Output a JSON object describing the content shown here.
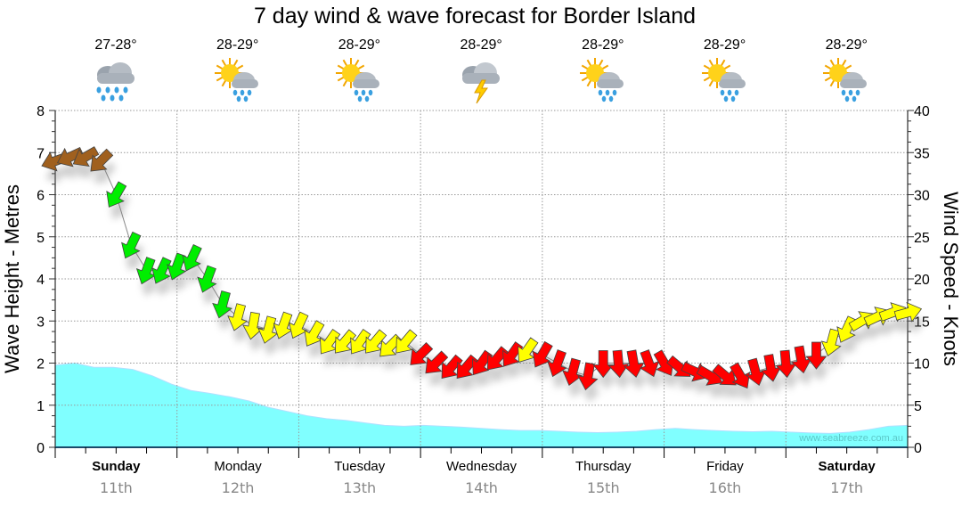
{
  "chart_data": {
    "type": "line",
    "title": "7 day wind & wave forecast for Border Island",
    "ylabel": "Wave Height - Metres",
    "y2label": "Wind Speed - Knots",
    "ylim": [
      0,
      8
    ],
    "y2lim": [
      0,
      40
    ],
    "yticks": [
      "0",
      "1",
      "2",
      "3",
      "4",
      "5",
      "6",
      "7",
      "8"
    ],
    "y2ticks": [
      "0",
      "5",
      "10",
      "15",
      "20",
      "25",
      "30",
      "35",
      "40"
    ],
    "grid": true,
    "days": [
      {
        "day": "Sunday",
        "date": "11th",
        "bold": true,
        "temp": "27-28°",
        "icon": "rain-cloud-icon"
      },
      {
        "day": "Monday",
        "date": "12th",
        "bold": false,
        "temp": "28-29°",
        "icon": "sun-cloud-rain-icon"
      },
      {
        "day": "Tuesday",
        "date": "13th",
        "bold": false,
        "temp": "28-29°",
        "icon": "sun-cloud-rain-icon"
      },
      {
        "day": "Wednesday",
        "date": "14th",
        "bold": false,
        "temp": "28-29°",
        "icon": "storm-cloud-icon"
      },
      {
        "day": "Thursday",
        "date": "15th",
        "bold": false,
        "temp": "28-29°",
        "icon": "sun-cloud-rain-icon"
      },
      {
        "day": "Friday",
        "date": "16th",
        "bold": false,
        "temp": "28-29°",
        "icon": "sun-cloud-rain-icon"
      },
      {
        "day": "Saturday",
        "date": "17th",
        "bold": true,
        "temp": "28-29°",
        "icon": "sun-cloud-rain-icon"
      }
    ],
    "wind_speed_knots": [
      34,
      34.5,
      34.5,
      34,
      30,
      24,
      21,
      21,
      21.5,
      22.5,
      20,
      17,
      15.5,
      14.5,
      14,
      14.5,
      14.5,
      13.5,
      12.5,
      12.5,
      12.5,
      12.5,
      12,
      12.5,
      11,
      10,
      9.5,
      9.5,
      10,
      10.5,
      11,
      11.5,
      11,
      10,
      9,
      8.5,
      10,
      10,
      10,
      10,
      10,
      9.5,
      9,
      8.5,
      8.5,
      8.5,
      9,
      9.5,
      10,
      10.5,
      11,
      12.5,
      14,
      15,
      15.5,
      16,
      16
    ],
    "wind_direction_deg": [
      250,
      245,
      240,
      225,
      210,
      205,
      200,
      205,
      200,
      205,
      200,
      195,
      195,
      190,
      195,
      200,
      205,
      210,
      215,
      220,
      215,
      220,
      225,
      220,
      225,
      225,
      220,
      220,
      215,
      220,
      215,
      215,
      210,
      200,
      195,
      190,
      180,
      175,
      170,
      160,
      150,
      130,
      115,
      120,
      130,
      150,
      165,
      170,
      175,
      170,
      180,
      195,
      205,
      60,
      65,
      70,
      75
    ],
    "wind_colors": {
      "over34": "#a0601e",
      "over17": "#00ee00",
      "over11.5": "#ffff00",
      "below": "#ff0000"
    },
    "wave_height_m": [
      1.95,
      2.0,
      1.9,
      1.9,
      1.85,
      1.7,
      1.5,
      1.35,
      1.28,
      1.2,
      1.1,
      0.95,
      0.85,
      0.75,
      0.68,
      0.64,
      0.58,
      0.52,
      0.5,
      0.52,
      0.5,
      0.48,
      0.45,
      0.42,
      0.4,
      0.4,
      0.38,
      0.36,
      0.35,
      0.36,
      0.38,
      0.42,
      0.45,
      0.42,
      0.4,
      0.38,
      0.37,
      0.38,
      0.36,
      0.34,
      0.33,
      0.36,
      0.42,
      0.5,
      0.52
    ],
    "wave_color": "#80ffff",
    "watermark": "www.seabreeze.com.au"
  }
}
